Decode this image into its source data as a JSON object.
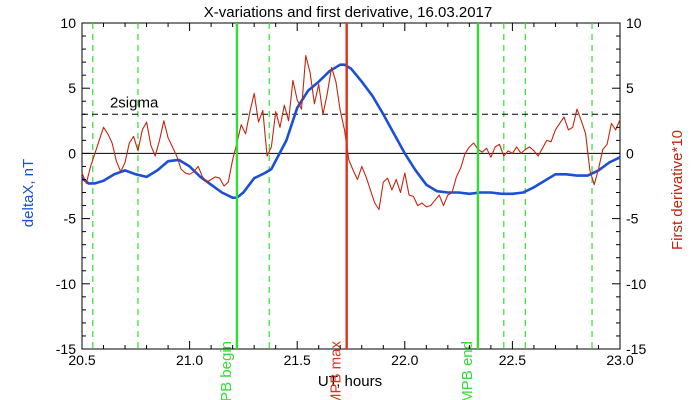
{
  "chart_data": {
    "type": "line",
    "title": "X-variations and first derivative, 16.03.2017",
    "xlabel": "UT, hours",
    "ylabel_left": "deltaX, nT",
    "ylabel_right": "First derivative*10",
    "xlim": [
      20.5,
      23.0
    ],
    "ylim": [
      -15,
      10
    ],
    "xticks": [
      "20.5",
      "21.0",
      "21.5",
      "22.0",
      "22.5",
      "23.0"
    ],
    "yticks_left": [
      "-15",
      "-10",
      "-5",
      "0",
      "5",
      "10"
    ],
    "yticks_right": [
      "-15",
      "-10",
      "-5",
      "0",
      "5",
      "10"
    ],
    "grid": false,
    "colors": {
      "deltaX": "#1a4fd6",
      "derivative": "#c2260f",
      "mpb_boundary": "#33dd33",
      "mpb_max": "#e0321a",
      "sigma": "#000000",
      "zero_line": "#000000"
    },
    "series": [
      {
        "name": "deltaX",
        "x": [
          20.5,
          20.53,
          20.56,
          20.6,
          20.65,
          20.7,
          20.75,
          20.8,
          20.85,
          20.9,
          20.95,
          21.0,
          21.05,
          21.1,
          21.15,
          21.2,
          21.22,
          21.25,
          21.3,
          21.35,
          21.38,
          21.45,
          21.5,
          21.55,
          21.6,
          21.65,
          21.7,
          21.72,
          21.75,
          21.8,
          21.85,
          21.9,
          21.95,
          22.0,
          22.05,
          22.1,
          22.15,
          22.2,
          22.25,
          22.3,
          22.35,
          22.4,
          22.45,
          22.5,
          22.55,
          22.6,
          22.65,
          22.7,
          22.75,
          22.8,
          22.85,
          22.9,
          22.95,
          23.0
        ],
        "values": [
          -1.9,
          -2.3,
          -2.3,
          -2.1,
          -1.6,
          -1.3,
          -1.6,
          -1.8,
          -1.3,
          -0.6,
          -0.5,
          -1.0,
          -1.8,
          -2.4,
          -3.0,
          -3.4,
          -3.4,
          -3.0,
          -1.9,
          -1.5,
          -1.2,
          1.0,
          3.5,
          4.8,
          5.5,
          6.3,
          6.8,
          6.8,
          6.5,
          5.5,
          4.4,
          3.0,
          1.5,
          0.0,
          -1.3,
          -2.4,
          -2.9,
          -3.0,
          -3.0,
          -3.1,
          -3.0,
          -3.0,
          -3.1,
          -3.1,
          -3.0,
          -2.6,
          -2.1,
          -1.6,
          -1.6,
          -1.7,
          -1.7,
          -1.3,
          -0.7,
          -0.3
        ]
      },
      {
        "name": "First derivative*10",
        "x": [
          20.5,
          20.52,
          20.54,
          20.56,
          20.58,
          20.6,
          20.62,
          20.64,
          20.66,
          20.68,
          20.7,
          20.72,
          20.74,
          20.76,
          20.78,
          20.8,
          20.82,
          20.84,
          20.86,
          20.88,
          20.9,
          20.92,
          20.94,
          20.96,
          20.98,
          21.0,
          21.02,
          21.04,
          21.06,
          21.08,
          21.1,
          21.12,
          21.14,
          21.16,
          21.18,
          21.2,
          21.22,
          21.24,
          21.26,
          21.28,
          21.3,
          21.32,
          21.34,
          21.36,
          21.38,
          21.4,
          21.42,
          21.44,
          21.46,
          21.48,
          21.5,
          21.52,
          21.54,
          21.56,
          21.58,
          21.6,
          21.62,
          21.64,
          21.66,
          21.68,
          21.7,
          21.72,
          21.74,
          21.76,
          21.78,
          21.8,
          21.82,
          21.84,
          21.86,
          21.88,
          21.9,
          21.92,
          21.94,
          21.96,
          21.98,
          22.0,
          22.02,
          22.04,
          22.06,
          22.08,
          22.1,
          22.12,
          22.14,
          22.16,
          22.18,
          22.2,
          22.22,
          22.24,
          22.26,
          22.28,
          22.3,
          22.32,
          22.34,
          22.36,
          22.38,
          22.4,
          22.42,
          22.44,
          22.46,
          22.48,
          22.5,
          22.52,
          22.54,
          22.56,
          22.58,
          22.6,
          22.62,
          22.64,
          22.66,
          22.68,
          22.7,
          22.72,
          22.74,
          22.76,
          22.78,
          22.8,
          22.82,
          22.84,
          22.86,
          22.88,
          22.9,
          22.92,
          22.94,
          22.96,
          22.98,
          23.0
        ],
        "values": [
          -1.5,
          -2.3,
          -1.0,
          0.0,
          1.0,
          2.0,
          1.5,
          0.8,
          -0.6,
          -1.4,
          -0.7,
          0.8,
          1.3,
          0.2,
          1.8,
          2.4,
          0.6,
          -0.2,
          1.0,
          2.5,
          1.2,
          0.5,
          -0.2,
          -1.2,
          -1.5,
          -1.6,
          -1.4,
          -1.0,
          -1.8,
          -2.2,
          -2.0,
          -1.8,
          -1.9,
          -2.5,
          -2.2,
          -0.5,
          0.8,
          2.2,
          1.5,
          3.2,
          4.6,
          2.4,
          3.3,
          -0.2,
          0.5,
          3.2,
          2.0,
          3.7,
          2.5,
          5.6,
          4.1,
          3.4,
          7.5,
          6.2,
          3.8,
          5.3,
          3.0,
          4.6,
          6.6,
          5.5,
          3.3,
          1.8,
          -0.5,
          -1.3,
          -2.0,
          -1.0,
          -1.8,
          -2.8,
          -3.8,
          -4.3,
          -2.2,
          -1.9,
          -2.8,
          -2.0,
          -3.0,
          -1.5,
          -3.2,
          -3.3,
          -4.0,
          -3.8,
          -4.1,
          -4.0,
          -3.6,
          -3.2,
          -4.0,
          -3.2,
          -3.0,
          -1.8,
          -1.1,
          0.0,
          0.5,
          0.8,
          0.3,
          0.1,
          0.4,
          -0.3,
          0.5,
          0.7,
          -0.2,
          0.2,
          0.0,
          0.5,
          0.0,
          0.3,
          0.5,
          0.2,
          -0.2,
          0.4,
          1.0,
          0.9,
          1.8,
          2.3,
          2.8,
          1.8,
          2.0,
          3.4,
          2.5,
          1.5,
          -1.3,
          -2.4,
          -1.2,
          0.3,
          0.7,
          2.3,
          1.8,
          2.6
        ],
        "color": "#c2260f"
      }
    ],
    "reference_lines": {
      "zero": 0,
      "sigma_level": 3.0,
      "sigma_label": "2sigma"
    },
    "vertical_markers": [
      {
        "x": 21.22,
        "label": "MPB begin",
        "style": "solid",
        "color": "#33dd33"
      },
      {
        "x": 21.73,
        "label": "MPB max",
        "style": "solid",
        "color": "#e0321a"
      },
      {
        "x": 22.34,
        "label": "MPB end",
        "style": "solid",
        "color": "#33dd33"
      }
    ],
    "dashed_markers": [
      20.55,
      20.76,
      21.37,
      22.46,
      22.56,
      22.87
    ]
  }
}
